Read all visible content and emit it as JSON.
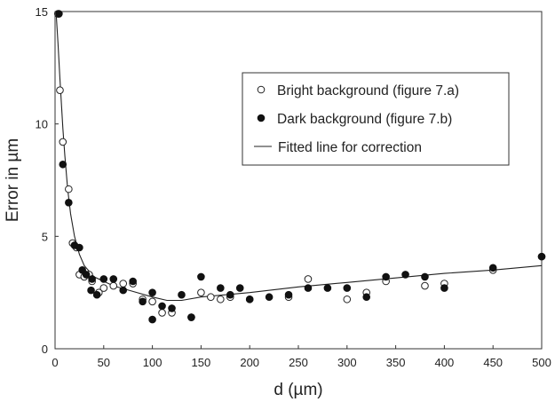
{
  "chart_data": {
    "type": "scatter",
    "xlabel": "d (µm)",
    "ylabel": "Error in µm",
    "xlim": [
      0,
      500
    ],
    "ylim": [
      0,
      15
    ],
    "xticks": [
      0,
      50,
      100,
      150,
      200,
      250,
      300,
      350,
      400,
      450,
      500
    ],
    "yticks": [
      0,
      5,
      10,
      15
    ],
    "grid": false,
    "legend_position": "top-right",
    "series": [
      {
        "name": "Bright background (figure 7.a)",
        "marker": "open-circle",
        "points": [
          [
            3,
            14.9
          ],
          [
            5,
            11.5
          ],
          [
            8,
            9.2
          ],
          [
            14,
            7.1
          ],
          [
            18,
            4.7
          ],
          [
            22,
            4.5
          ],
          [
            25,
            3.3
          ],
          [
            30,
            3.2
          ],
          [
            35,
            3.3
          ],
          [
            38,
            3.0
          ],
          [
            45,
            2.5
          ],
          [
            50,
            2.7
          ],
          [
            60,
            2.8
          ],
          [
            70,
            2.9
          ],
          [
            80,
            2.9
          ],
          [
            90,
            2.2
          ],
          [
            100,
            2.1
          ],
          [
            110,
            1.6
          ],
          [
            120,
            1.6
          ],
          [
            140,
            1.4
          ],
          [
            150,
            2.5
          ],
          [
            160,
            2.3
          ],
          [
            170,
            2.2
          ],
          [
            180,
            2.3
          ],
          [
            200,
            2.2
          ],
          [
            240,
            2.3
          ],
          [
            260,
            3.1
          ],
          [
            300,
            2.2
          ],
          [
            320,
            2.5
          ],
          [
            340,
            3.0
          ],
          [
            380,
            2.8
          ],
          [
            400,
            2.9
          ],
          [
            450,
            3.5
          ],
          [
            500,
            4.1
          ]
        ]
      },
      {
        "name": "Dark background (figure 7.b)",
        "marker": "filled-circle",
        "points": [
          [
            4,
            14.9
          ],
          [
            8,
            8.2
          ],
          [
            14,
            6.5
          ],
          [
            20,
            4.6
          ],
          [
            25,
            4.5
          ],
          [
            28,
            3.5
          ],
          [
            32,
            3.3
          ],
          [
            37,
            2.6
          ],
          [
            38,
            3.1
          ],
          [
            43,
            2.4
          ],
          [
            50,
            3.1
          ],
          [
            60,
            3.1
          ],
          [
            70,
            2.6
          ],
          [
            80,
            3.0
          ],
          [
            90,
            2.1
          ],
          [
            100,
            2.5
          ],
          [
            100,
            1.3
          ],
          [
            110,
            1.9
          ],
          [
            120,
            1.8
          ],
          [
            130,
            2.4
          ],
          [
            140,
            1.4
          ],
          [
            150,
            3.2
          ],
          [
            170,
            2.7
          ],
          [
            180,
            2.4
          ],
          [
            190,
            2.7
          ],
          [
            200,
            2.2
          ],
          [
            220,
            2.3
          ],
          [
            240,
            2.4
          ],
          [
            260,
            2.7
          ],
          [
            280,
            2.7
          ],
          [
            300,
            2.7
          ],
          [
            320,
            2.3
          ],
          [
            340,
            3.2
          ],
          [
            360,
            3.3
          ],
          [
            380,
            3.2
          ],
          [
            400,
            2.7
          ],
          [
            450,
            3.6
          ],
          [
            500,
            4.1
          ]
        ]
      },
      {
        "name": "Fitted line for correction",
        "marker": "line",
        "points": [
          [
            1,
            15.0
          ],
          [
            3,
            13.6
          ],
          [
            5,
            12.0
          ],
          [
            8,
            9.8
          ],
          [
            10,
            8.6
          ],
          [
            13,
            7.1
          ],
          [
            16,
            6.0
          ],
          [
            20,
            5.0
          ],
          [
            25,
            4.2
          ],
          [
            30,
            3.7
          ],
          [
            40,
            3.2
          ],
          [
            50,
            3.0
          ],
          [
            60,
            2.8
          ],
          [
            80,
            2.55
          ],
          [
            100,
            2.3
          ],
          [
            115,
            2.15
          ],
          [
            130,
            2.15
          ],
          [
            150,
            2.3
          ],
          [
            200,
            2.5
          ],
          [
            250,
            2.75
          ],
          [
            300,
            2.95
          ],
          [
            350,
            3.15
          ],
          [
            400,
            3.35
          ],
          [
            450,
            3.5
          ],
          [
            500,
            3.7
          ]
        ]
      }
    ]
  }
}
